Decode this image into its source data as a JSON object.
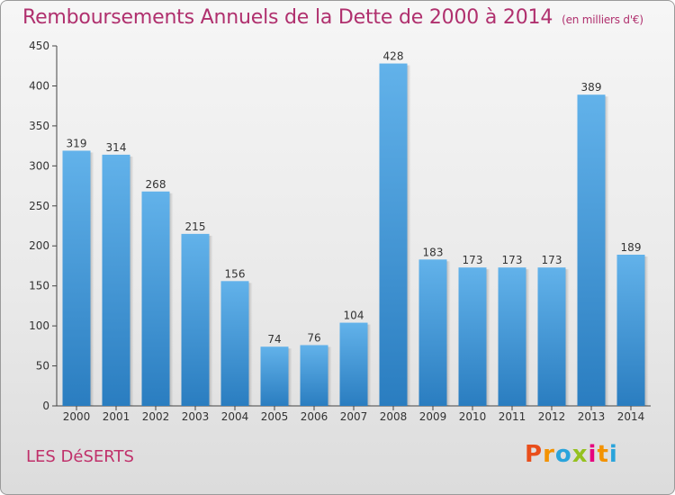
{
  "title": "Remboursements Annuels de la Dette de 2000 à 2014",
  "unit": "(en milliers d'€)",
  "city": "LES DéSERTS",
  "logo": {
    "text": "Proxiti",
    "colors": [
      "#e94e1b",
      "#f39200",
      "#2aa4db",
      "#95c11f",
      "#e6007e",
      "#f39200",
      "#2aa4db"
    ]
  },
  "colors": {
    "bar_top": "#62b2ea",
    "bar_bottom": "#2a7dc0",
    "title": "#b0306e"
  },
  "chart_data": {
    "type": "bar",
    "categories": [
      "2000",
      "2001",
      "2002",
      "2003",
      "2004",
      "2005",
      "2006",
      "2007",
      "2008",
      "2009",
      "2010",
      "2011",
      "2012",
      "2013",
      "2014"
    ],
    "values": [
      319,
      314,
      268,
      215,
      156,
      74,
      76,
      104,
      428,
      183,
      173,
      173,
      173,
      389,
      189
    ],
    "ylim": [
      0,
      450
    ],
    "yticks": [
      0,
      50,
      100,
      150,
      200,
      250,
      300,
      350,
      400,
      450
    ],
    "grid": false,
    "title": "Remboursements Annuels de la Dette de 2000 à 2014",
    "xlabel": "",
    "ylabel": ""
  }
}
